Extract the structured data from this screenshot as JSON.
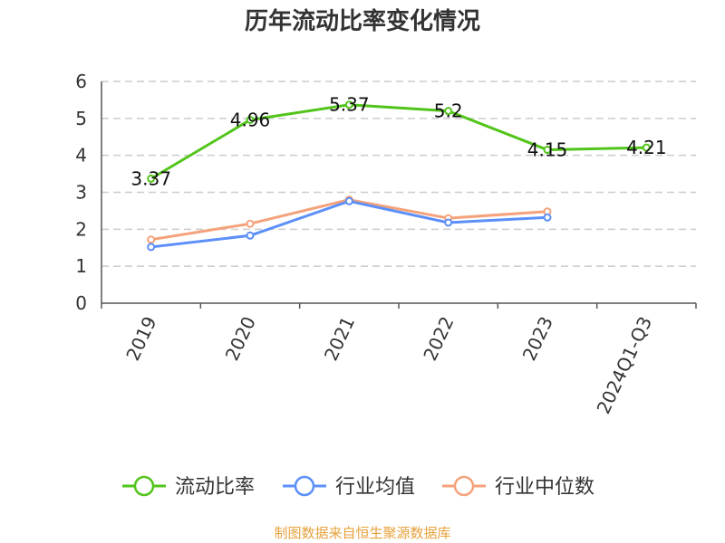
{
  "chart_data": {
    "type": "line",
    "title": "历年流动比率变化情况",
    "categories": [
      "2019",
      "2020",
      "2021",
      "2022",
      "2023",
      "2024Q1-Q3"
    ],
    "ylim": [
      0,
      6
    ],
    "yticks": [
      0,
      1,
      2,
      3,
      4,
      5,
      6
    ],
    "grid": true,
    "legend_position": "bottom",
    "series": [
      {
        "name": "流动比率",
        "color": "#52c41a",
        "values": [
          3.37,
          4.96,
          5.37,
          5.2,
          4.15,
          4.21
        ],
        "labels": [
          "3.37",
          "4.96",
          "5.37",
          "5.2",
          "4.15",
          "4.21"
        ]
      },
      {
        "name": "行业均值",
        "color": "#5b8ff9",
        "values": [
          1.52,
          1.83,
          2.76,
          2.18,
          2.32,
          null
        ]
      },
      {
        "name": "行业中位数",
        "color": "#f4a27b",
        "values": [
          1.72,
          2.15,
          2.8,
          2.3,
          2.48,
          null
        ]
      }
    ]
  },
  "footer": "制图数据来自恒生聚源数据库"
}
